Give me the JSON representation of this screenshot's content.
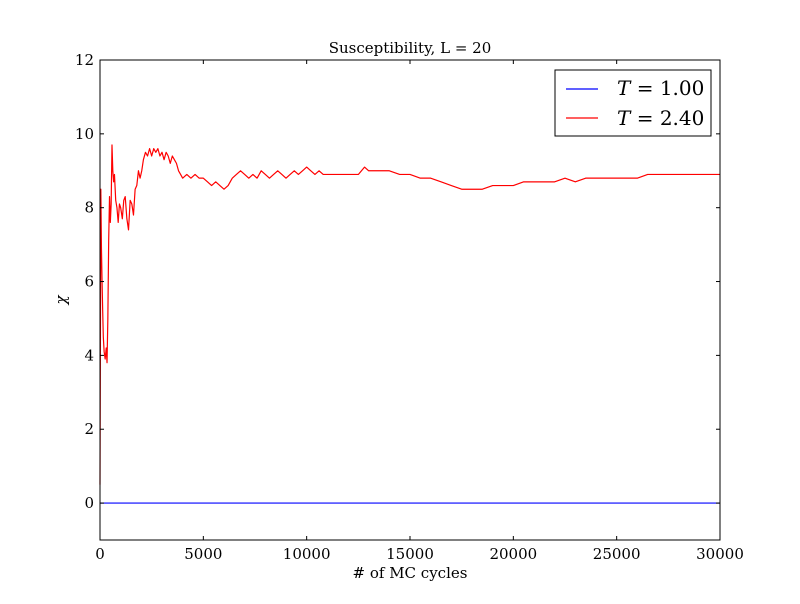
{
  "chart_data": {
    "type": "line",
    "title": "Susceptibility, L = 20",
    "xlabel": "# of MC cycles",
    "ylabel": "χ",
    "xlim": [
      0,
      30000
    ],
    "ylim": [
      -1,
      12
    ],
    "xticks": [
      0,
      5000,
      10000,
      15000,
      20000,
      25000,
      30000
    ],
    "yticks": [
      0,
      2,
      4,
      6,
      8,
      10,
      12
    ],
    "legend_position": "top-right",
    "series": [
      {
        "name": "T = 1.00",
        "legend_symbol": "T",
        "legend_value": "= 1.00",
        "color": "#0000ff",
        "points": [
          [
            0,
            0
          ],
          [
            30000,
            0
          ]
        ]
      },
      {
        "name": "T = 2.40",
        "legend_symbol": "T",
        "legend_value": "= 2.40",
        "color": "#ff0000",
        "points": [
          [
            0,
            0.5
          ],
          [
            40,
            8.5
          ],
          [
            70,
            6.9
          ],
          [
            100,
            6.0
          ],
          [
            130,
            5.2
          ],
          [
            160,
            4.5
          ],
          [
            200,
            4.1
          ],
          [
            250,
            3.9
          ],
          [
            300,
            4.2
          ],
          [
            340,
            3.8
          ],
          [
            380,
            5.0
          ],
          [
            420,
            7.1
          ],
          [
            460,
            8.3
          ],
          [
            500,
            7.6
          ],
          [
            540,
            8.1
          ],
          [
            580,
            9.7
          ],
          [
            620,
            9.0
          ],
          [
            660,
            8.7
          ],
          [
            700,
            8.9
          ],
          [
            760,
            8.2
          ],
          [
            820,
            8.0
          ],
          [
            880,
            7.6
          ],
          [
            940,
            8.1
          ],
          [
            1000,
            8.0
          ],
          [
            1080,
            7.7
          ],
          [
            1150,
            8.2
          ],
          [
            1220,
            8.3
          ],
          [
            1300,
            7.7
          ],
          [
            1380,
            7.4
          ],
          [
            1460,
            8.2
          ],
          [
            1540,
            8.1
          ],
          [
            1620,
            7.8
          ],
          [
            1700,
            8.5
          ],
          [
            1780,
            8.6
          ],
          [
            1860,
            9.0
          ],
          [
            1940,
            8.8
          ],
          [
            2020,
            9.0
          ],
          [
            2100,
            9.3
          ],
          [
            2200,
            9.5
          ],
          [
            2300,
            9.4
          ],
          [
            2400,
            9.6
          ],
          [
            2500,
            9.4
          ],
          [
            2600,
            9.6
          ],
          [
            2700,
            9.5
          ],
          [
            2800,
            9.6
          ],
          [
            2900,
            9.4
          ],
          [
            3000,
            9.5
          ],
          [
            3100,
            9.3
          ],
          [
            3200,
            9.5
          ],
          [
            3300,
            9.4
          ],
          [
            3400,
            9.2
          ],
          [
            3500,
            9.4
          ],
          [
            3600,
            9.3
          ],
          [
            3700,
            9.2
          ],
          [
            3800,
            9.0
          ],
          [
            3900,
            8.9
          ],
          [
            4000,
            8.8
          ],
          [
            4200,
            8.9
          ],
          [
            4400,
            8.8
          ],
          [
            4600,
            8.9
          ],
          [
            4800,
            8.8
          ],
          [
            5000,
            8.8
          ],
          [
            5200,
            8.7
          ],
          [
            5400,
            8.6
          ],
          [
            5600,
            8.7
          ],
          [
            5800,
            8.6
          ],
          [
            6000,
            8.5
          ],
          [
            6200,
            8.6
          ],
          [
            6400,
            8.8
          ],
          [
            6600,
            8.9
          ],
          [
            6800,
            9.0
          ],
          [
            7000,
            8.9
          ],
          [
            7200,
            8.8
          ],
          [
            7400,
            8.9
          ],
          [
            7600,
            8.8
          ],
          [
            7800,
            9.0
          ],
          [
            8000,
            8.9
          ],
          [
            8200,
            8.8
          ],
          [
            8400,
            8.9
          ],
          [
            8600,
            9.0
          ],
          [
            8800,
            8.9
          ],
          [
            9000,
            8.8
          ],
          [
            9200,
            8.9
          ],
          [
            9400,
            9.0
          ],
          [
            9600,
            8.9
          ],
          [
            9800,
            9.0
          ],
          [
            10000,
            9.1
          ],
          [
            10200,
            9.0
          ],
          [
            10400,
            8.9
          ],
          [
            10600,
            9.0
          ],
          [
            10800,
            8.9
          ],
          [
            11000,
            8.9
          ],
          [
            11500,
            8.9
          ],
          [
            12000,
            8.9
          ],
          [
            12500,
            8.9
          ],
          [
            12800,
            9.1
          ],
          [
            13000,
            9.0
          ],
          [
            13500,
            9.0
          ],
          [
            14000,
            9.0
          ],
          [
            14500,
            8.9
          ],
          [
            15000,
            8.9
          ],
          [
            15500,
            8.8
          ],
          [
            16000,
            8.8
          ],
          [
            16500,
            8.7
          ],
          [
            17000,
            8.6
          ],
          [
            17500,
            8.5
          ],
          [
            18000,
            8.5
          ],
          [
            18500,
            8.5
          ],
          [
            19000,
            8.6
          ],
          [
            19500,
            8.6
          ],
          [
            20000,
            8.6
          ],
          [
            20500,
            8.7
          ],
          [
            21000,
            8.7
          ],
          [
            21500,
            8.7
          ],
          [
            22000,
            8.7
          ],
          [
            22500,
            8.8
          ],
          [
            23000,
            8.7
          ],
          [
            23500,
            8.8
          ],
          [
            24000,
            8.8
          ],
          [
            24500,
            8.8
          ],
          [
            25000,
            8.8
          ],
          [
            25500,
            8.8
          ],
          [
            26000,
            8.8
          ],
          [
            26500,
            8.9
          ],
          [
            27000,
            8.9
          ],
          [
            27500,
            8.9
          ],
          [
            28000,
            8.9
          ],
          [
            28500,
            8.9
          ],
          [
            29000,
            8.9
          ],
          [
            29500,
            8.9
          ],
          [
            30000,
            8.9
          ]
        ]
      }
    ]
  }
}
